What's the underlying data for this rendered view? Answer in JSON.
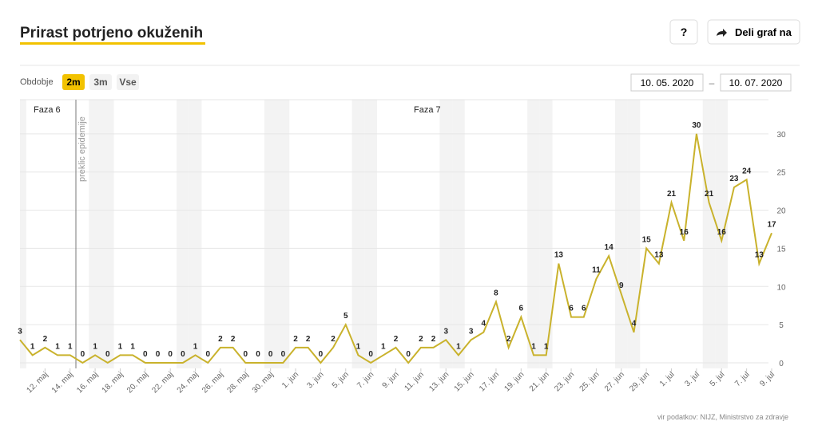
{
  "header": {
    "title": "Prirast potrjeno okuženih",
    "help": "?",
    "share": "Deli graf na"
  },
  "controls": {
    "period_label": "Obdobje",
    "periods": [
      "2m",
      "3m",
      "Vse"
    ],
    "date_from": "10. 05. 2020",
    "date_sep": "–",
    "date_to": "10. 07. 2020"
  },
  "source": "vir podatkov: NIJZ, Ministrstvo za zdravje",
  "chart_data": {
    "type": "line",
    "annotations": [
      "Faza 6",
      "preklic epidemije",
      "Faza 7"
    ],
    "categories": [
      null,
      null,
      "12. maj",
      null,
      "14. maj",
      null,
      "16. maj",
      null,
      "18. maj",
      null,
      "20. maj",
      null,
      "22. maj",
      null,
      "24. maj",
      null,
      "26. maj",
      null,
      "28. maj",
      null,
      "30. maj",
      null,
      "1. jun",
      null,
      "3. jun",
      null,
      "5. jun",
      null,
      "7. jun",
      null,
      "9. jun",
      null,
      "11. jun",
      null,
      "13. jun",
      null,
      "15. jun",
      null,
      "17. jun",
      null,
      "19. jun",
      null,
      "21. jun",
      null,
      "23. jun",
      null,
      "25. jun",
      null,
      "27. jun",
      null,
      "29. jun",
      null,
      "1. jul",
      null,
      "3. jul",
      null,
      "5. jul",
      null,
      "7. jul",
      null,
      "9. jul"
    ],
    "series": [
      {
        "name": "Prirast potrjeno okuženih",
        "color": "#c9b22c",
        "values": [
          3,
          1,
          2,
          1,
          1,
          0,
          1,
          0,
          1,
          1,
          0,
          0,
          0,
          0,
          1,
          0,
          2,
          2,
          0,
          0,
          0,
          0,
          2,
          2,
          0,
          2,
          5,
          1,
          0,
          1,
          2,
          0,
          2,
          2,
          3,
          1,
          3,
          4,
          8,
          2,
          6,
          1,
          1,
          13,
          6,
          6,
          11,
          14,
          9,
          4,
          15,
          13,
          21,
          16,
          30,
          21,
          16,
          23,
          24,
          13,
          17
        ]
      }
    ],
    "ylim": [
      0,
      35
    ],
    "yticks": [
      0,
      5,
      10,
      15,
      20,
      25,
      30
    ],
    "grid": true
  }
}
